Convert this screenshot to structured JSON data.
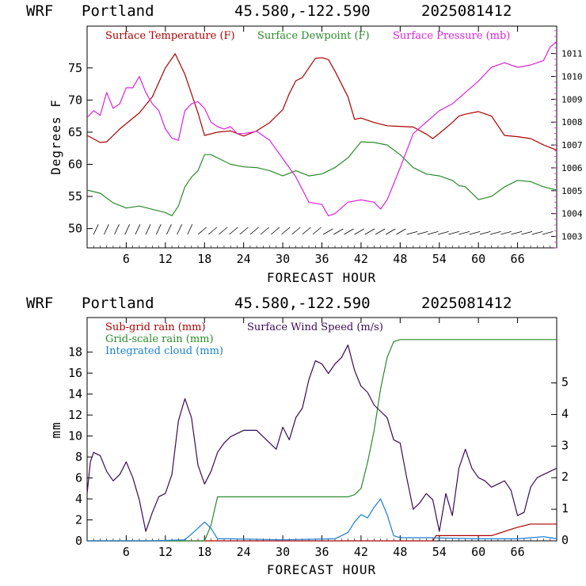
{
  "panels": [
    {
      "header": {
        "model": "WRF",
        "location": "Portland",
        "coords": "45.580,-122.590",
        "init": "2025081412"
      }
    },
    {
      "header": {
        "model": "WRF",
        "location": "Portland",
        "coords": "45.580,-122.590",
        "init": "2025081412"
      }
    }
  ],
  "chart_data": [
    {
      "type": "line",
      "xlabel": "FORECAST HOUR",
      "ylabel": "Degrees F",
      "xlim": [
        0,
        72
      ],
      "ylim": [
        47,
        81.5
      ],
      "y2lim": [
        1002.5,
        1012.2
      ],
      "xticks": [
        6,
        12,
        18,
        24,
        30,
        36,
        42,
        48,
        54,
        60,
        66
      ],
      "yticks": [
        50,
        55,
        60,
        65,
        70,
        75
      ],
      "y2ticks": [
        1003,
        1004,
        1005,
        1006,
        1007,
        1008,
        1009,
        1010,
        1011
      ],
      "grid": false,
      "legend_position": "top",
      "series": [
        {
          "name": "Surface Temperature (F)",
          "color": "#aa0000",
          "axis": "left",
          "x": [
            0,
            2,
            3,
            5,
            8,
            10,
            12,
            13.5,
            15,
            17,
            18,
            20,
            22,
            24,
            26,
            28,
            30,
            31,
            32,
            33,
            34,
            35,
            36,
            37,
            38,
            40,
            41,
            42,
            44,
            46,
            48,
            50,
            52,
            53,
            54,
            56,
            57,
            58,
            60,
            62,
            64,
            66,
            68,
            70,
            72
          ],
          "y": [
            64.5,
            63.4,
            63.5,
            65.5,
            68,
            70.5,
            75,
            77.2,
            74,
            68,
            64.5,
            65,
            65.2,
            64.4,
            65.2,
            66.5,
            68.5,
            71,
            73,
            73.5,
            75,
            76.5,
            76.6,
            76.3,
            74.5,
            70.5,
            67,
            67.2,
            66.5,
            66,
            65.9,
            65.8,
            64.7,
            64,
            64.8,
            66.5,
            67.5,
            67.8,
            68.2,
            67.5,
            64.5,
            64.3,
            64,
            63,
            62.2
          ]
        },
        {
          "name": "Surface Dewpoint (F)",
          "color": "#2a8a2a",
          "axis": "left",
          "x": [
            0,
            2,
            4,
            6,
            8,
            10,
            12,
            13,
            14,
            15,
            16,
            17,
            18,
            19,
            20,
            22,
            24,
            26,
            28,
            30,
            32,
            34,
            36,
            38,
            40,
            42,
            44,
            46,
            48,
            50,
            52,
            54,
            56,
            57,
            58,
            60,
            62,
            64,
            66,
            68,
            70,
            72
          ],
          "y": [
            56,
            55.5,
            54,
            53.2,
            53.5,
            53,
            52.5,
            52,
            53.5,
            56.5,
            58,
            59,
            61.5,
            61.5,
            61,
            60,
            59.6,
            59.5,
            59,
            58.2,
            59,
            58.2,
            58.5,
            59.5,
            61,
            63.5,
            63.4,
            63,
            61.5,
            59.5,
            58.5,
            58.2,
            57.5,
            56.7,
            56.5,
            54.5,
            55,
            56.5,
            57.5,
            57.3,
            56.5,
            56
          ]
        },
        {
          "name": "Surface Pressure (mb)",
          "color": "#dd22dd",
          "axis": "right",
          "x": [
            0,
            1,
            2,
            3,
            4,
            5,
            6,
            7,
            8,
            9,
            10,
            11,
            12,
            13,
            14,
            15,
            16,
            17,
            18,
            19,
            20,
            21,
            22,
            23,
            24,
            26,
            28,
            30,
            32,
            34,
            36,
            37,
            38,
            40,
            42,
            44,
            45,
            46,
            48,
            50,
            52,
            54,
            56,
            58,
            60,
            62,
            64,
            66,
            68,
            70,
            71,
            72
          ],
          "y": [
            1008.2,
            1008.5,
            1008.3,
            1009.3,
            1008.6,
            1008.8,
            1009.5,
            1009.5,
            1010,
            1009.3,
            1008.8,
            1008.5,
            1007.7,
            1007.3,
            1007.2,
            1008.5,
            1008.8,
            1008.9,
            1008.6,
            1008,
            1007.8,
            1007.7,
            1007.8,
            1007.5,
            1007.5,
            1007.6,
            1007.2,
            1006.4,
            1005.6,
            1004.5,
            1004.4,
            1003.9,
            1004,
            1004.5,
            1004.6,
            1004.5,
            1004.2,
            1004.6,
            1006,
            1007.5,
            1008,
            1008.5,
            1008.8,
            1009.3,
            1009.8,
            1010.4,
            1010.6,
            1010.4,
            1010.5,
            1010.7,
            1011.3,
            1011.5
          ]
        }
      ]
    },
    {
      "type": "line",
      "xlabel": "FORECAST HOUR",
      "ylabel": "mm",
      "xlim": [
        0,
        72
      ],
      "ylim": [
        0,
        21.3
      ],
      "y2lim": [
        0,
        7.07
      ],
      "xticks": [
        6,
        12,
        18,
        24,
        30,
        36,
        42,
        48,
        54,
        60,
        66
      ],
      "yticks": [
        0,
        2,
        4,
        6,
        8,
        10,
        12,
        14,
        16,
        18
      ],
      "y2ticks": [
        0,
        1,
        2,
        3,
        4,
        5
      ],
      "grid": false,
      "legend_position": "top-left",
      "series": [
        {
          "name": "Sub-grid rain (mm)",
          "color": "#aa0000",
          "axis": "left",
          "x": [
            0,
            53,
            53.5,
            62,
            64,
            66,
            68,
            72
          ],
          "y": [
            0,
            0,
            0.5,
            0.5,
            0.9,
            1.3,
            1.6,
            1.6
          ]
        },
        {
          "name": "Grid-scale rain (mm)",
          "color": "#2a8a2a",
          "axis": "left",
          "x": [
            0,
            18,
            19,
            20,
            24,
            30,
            36,
            40,
            41,
            42,
            43,
            44,
            45,
            46,
            47,
            48,
            72
          ],
          "y": [
            0,
            0,
            1.5,
            4.2,
            4.2,
            4.2,
            4.2,
            4.2,
            4.4,
            5,
            7.5,
            10.5,
            14.5,
            17.5,
            19,
            19.2,
            19.2
          ]
        },
        {
          "name": "Integrated cloud (mm)",
          "color": "#1a7fd0",
          "axis": "left",
          "x": [
            0,
            10,
            15,
            17,
            18,
            19,
            20,
            22,
            30,
            38,
            40,
            41,
            42,
            43,
            44,
            45,
            46,
            47,
            48,
            52,
            60,
            66,
            70,
            71,
            72
          ],
          "y": [
            0,
            0,
            0.1,
            1.2,
            1.8,
            1.2,
            0.2,
            0.2,
            0.1,
            0.2,
            0.8,
            1.8,
            2.5,
            2.2,
            3.2,
            4,
            2.5,
            0.5,
            0.3,
            0.3,
            0.2,
            0.2,
            0.4,
            0.3,
            0.2
          ]
        },
        {
          "name": "Surface Wind Speed (m/s)",
          "color": "#3a0a55",
          "axis": "right",
          "x": [
            0,
            0.5,
            1,
            2,
            3,
            4,
            5,
            6,
            7,
            8,
            9,
            10,
            11,
            12,
            13,
            14,
            15,
            16,
            17,
            18,
            19,
            20,
            21,
            22,
            24,
            26,
            28,
            29,
            30,
            31,
            32,
            33,
            34,
            35,
            36,
            37,
            38,
            39,
            40,
            41,
            42,
            43,
            44,
            45,
            46,
            47,
            48,
            49,
            50,
            51,
            52,
            53,
            54,
            55,
            56,
            57,
            58,
            59,
            60,
            61,
            62,
            63,
            64,
            65,
            66,
            67,
            68,
            69,
            70,
            71,
            72
          ],
          "y": [
            1.5,
            2.5,
            2.8,
            2.7,
            2.2,
            1.9,
            2.1,
            2.5,
            2.0,
            1.3,
            0.3,
            0.9,
            1.4,
            1.5,
            2.1,
            3.8,
            4.5,
            3.9,
            2.4,
            1.8,
            2.2,
            2.8,
            3.1,
            3.3,
            3.5,
            3.5,
            3.1,
            2.9,
            3.6,
            3.2,
            3.9,
            4.2,
            5.1,
            5.7,
            5.6,
            5.3,
            5.6,
            5.8,
            6.2,
            5.4,
            4.9,
            4.7,
            4.3,
            4.1,
            3.9,
            3.2,
            3.1,
            2.0,
            1.0,
            1.2,
            1.5,
            1.3,
            0.3,
            1.5,
            0.8,
            2.3,
            2.9,
            2.3,
            2.0,
            1.9,
            1.7,
            1.8,
            1.9,
            1.6,
            0.8,
            0.9,
            1.7,
            2.0,
            2.1,
            2.2,
            2.3
          ]
        }
      ]
    }
  ]
}
